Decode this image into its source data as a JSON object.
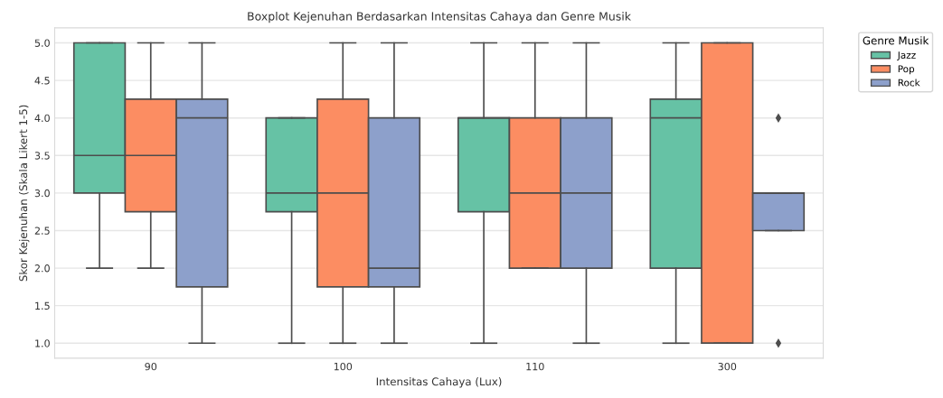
{
  "chart_data": {
    "type": "box",
    "title": "Boxplot Kejenuhan Berdasarkan Intensitas Cahaya dan Genre Musik",
    "xlabel": "Intensitas Cahaya (Lux)",
    "ylabel": "Skor Kejenuhan (Skala Likert 1-5)",
    "legend_title": "Genre Musik",
    "categories": [
      "90",
      "100",
      "110",
      "300"
    ],
    "series": [
      {
        "name": "Jazz",
        "color": "#66c2a5",
        "boxes": [
          {
            "low": 2.0,
            "q1": 3.0,
            "median": 3.5,
            "q3": 5.0,
            "high": 5.0
          },
          {
            "low": 1.0,
            "q1": 2.75,
            "median": 3.0,
            "q3": 4.0,
            "high": 4.0
          },
          {
            "low": 1.0,
            "q1": 2.75,
            "median": 4.0,
            "q3": 4.0,
            "high": 5.0
          },
          {
            "low": 1.0,
            "q1": 2.0,
            "median": 4.0,
            "q3": 4.25,
            "high": 5.0
          }
        ]
      },
      {
        "name": "Pop",
        "color": "#fc8d62",
        "boxes": [
          {
            "low": 2.0,
            "q1": 2.75,
            "median": 3.5,
            "q3": 4.25,
            "high": 5.0
          },
          {
            "low": 1.0,
            "q1": 1.75,
            "median": 3.0,
            "q3": 4.25,
            "high": 5.0
          },
          {
            "low": 2.0,
            "q1": 2.0,
            "median": 3.0,
            "q3": 4.0,
            "high": 5.0
          },
          {
            "low": 1.0,
            "q1": 1.0,
            "median": 1.0,
            "q3": 5.0,
            "high": 5.0
          }
        ]
      },
      {
        "name": "Rock",
        "color": "#8da0cb",
        "boxes": [
          {
            "low": 1.0,
            "q1": 1.75,
            "median": 4.0,
            "q3": 4.25,
            "high": 5.0
          },
          {
            "low": 1.0,
            "q1": 1.75,
            "median": 2.0,
            "q3": 4.0,
            "high": 5.0
          },
          {
            "low": 1.0,
            "q1": 2.0,
            "median": 3.0,
            "q3": 4.0,
            "high": 5.0
          },
          {
            "low": 2.5,
            "q1": 2.5,
            "median": 3.0,
            "q3": 3.0,
            "high": 3.0,
            "outliers": [
              4.0,
              1.0
            ]
          }
        ]
      }
    ],
    "ylim": [
      0.8,
      5.2
    ],
    "yticks": [
      {
        "value": 1,
        "label": "1.0"
      },
      1.5,
      {
        "value": 2,
        "label": "2.0"
      },
      2.5,
      {
        "value": 3,
        "label": "3.0"
      },
      3.5,
      {
        "value": 4,
        "label": "4.0"
      },
      4.5,
      {
        "value": 5,
        "label": "5.0"
      }
    ],
    "grid": "y",
    "legend": "top right"
  }
}
